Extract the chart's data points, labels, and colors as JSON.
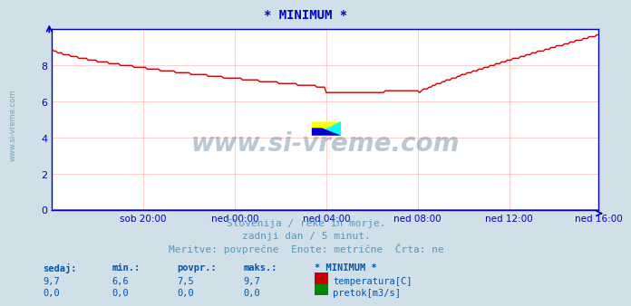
{
  "title": "* MINIMUM *",
  "title_color": "#0000cc",
  "bg_color": "#d0dfe8",
  "plot_bg_color": "#ffffff",
  "grid_color": "#ffbbbb",
  "axis_color": "#0000bb",
  "line_color_temp": "#cc0000",
  "line_color_flow": "#008800",
  "ylim": [
    0,
    10
  ],
  "yticks": [
    0,
    2,
    4,
    6,
    8
  ],
  "xlabel_times": [
    "sob 20:00",
    "ned 00:00",
    "ned 04:00",
    "ned 08:00",
    "ned 12:00",
    "ned 16:00"
  ],
  "watermark_text": "www.si-vreme.com",
  "watermark_color": "#1a4a6b",
  "watermark_alpha": 0.3,
  "subtitle1": "Slovenija / reke in morje.",
  "subtitle2": "zadnji dan / 5 minut.",
  "subtitle3": "Meritve: povprečne  Enote: metrične  Črta: ne",
  "subtitle_color": "#5599bb",
  "legend_header": "* MINIMUM *",
  "legend_label1": "temperatura[C]",
  "legend_label2": "pretok[m3/s]",
  "legend_color1": "#cc0000",
  "legend_color2": "#008800",
  "table_headers": [
    "sedaj:",
    "min.:",
    "povpr.:",
    "maks.:"
  ],
  "table_row1": [
    "9,7",
    "6,6",
    "7,5",
    "9,7"
  ],
  "table_row2": [
    "0,0",
    "0,0",
    "0,0",
    "0,0"
  ],
  "table_color": "#0055aa",
  "left_label": "www.si-vreme.com",
  "left_label_color": "#5599aa",
  "num_points": 288
}
